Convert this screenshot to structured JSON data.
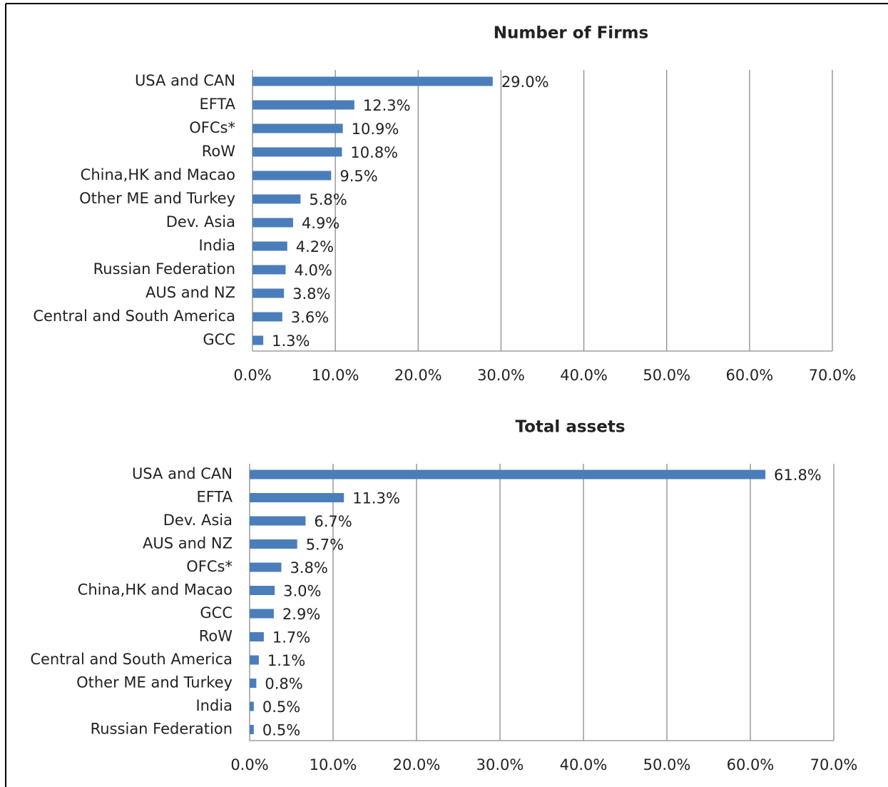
{
  "chart_data": [
    {
      "type": "hbar",
      "title": "Number of Firms",
      "categories": [
        "USA and CAN",
        "EFTA",
        "OFCs*",
        "RoW",
        "China,HK and Macao",
        "Other ME and Turkey",
        "Dev. Asia",
        "India",
        "Russian Federation",
        "AUS and NZ",
        "Central and South America",
        "GCC"
      ],
      "values": [
        29.0,
        12.3,
        10.9,
        10.8,
        9.5,
        5.8,
        4.9,
        4.2,
        4.0,
        3.8,
        3.6,
        1.3
      ],
      "value_labels": [
        "29.0%",
        "12.3%",
        "10.9%",
        "10.8%",
        "9.5%",
        "5.8%",
        "4.9%",
        "4.2%",
        "4.0%",
        "3.8%",
        "3.6%",
        "1.3%"
      ],
      "color": "#4a7ebb",
      "xlim": [
        0,
        70
      ],
      "xticks": [
        {
          "value": 0,
          "label": "0.0%"
        },
        {
          "value": 10,
          "label": "10.0%"
        },
        {
          "value": 20,
          "label": "20.0%"
        },
        {
          "value": 30,
          "label": "30.0%"
        },
        {
          "value": 40,
          "label": "40.0%"
        },
        {
          "value": 50,
          "label": "50.0%"
        },
        {
          "value": 60,
          "label": "60.0%"
        },
        {
          "value": 70,
          "label": "70.0%"
        }
      ],
      "grid": true
    },
    {
      "type": "hbar",
      "title": "Total assets",
      "categories": [
        "USA and CAN",
        "EFTA",
        "Dev. Asia",
        "AUS and NZ",
        "OFCs*",
        "China,HK and Macao",
        "GCC",
        "RoW",
        "Central and South America",
        "Other ME and Turkey",
        "India",
        "Russian Federation"
      ],
      "values": [
        61.8,
        11.3,
        6.7,
        5.7,
        3.8,
        3.0,
        2.9,
        1.7,
        1.1,
        0.8,
        0.5,
        0.5
      ],
      "value_labels": [
        "61.8%",
        "11.3%",
        "6.7%",
        "5.7%",
        "3.8%",
        "3.0%",
        "2.9%",
        "1.7%",
        "1.1%",
        "0.8%",
        "0.5%",
        "0.5%"
      ],
      "color": "#4a7ebb",
      "xlim": [
        0,
        70
      ],
      "xticks": [
        {
          "value": 0,
          "label": "0.0%"
        },
        {
          "value": 10,
          "label": "10.0%"
        },
        {
          "value": 20,
          "label": "20.0%"
        },
        {
          "value": 30,
          "label": "30.0%"
        },
        {
          "value": 40,
          "label": "40.0%"
        },
        {
          "value": 50,
          "label": "50.0%"
        },
        {
          "value": 60,
          "label": "60.0%"
        },
        {
          "value": 70,
          "label": "70.0%"
        }
      ],
      "grid": true
    }
  ]
}
